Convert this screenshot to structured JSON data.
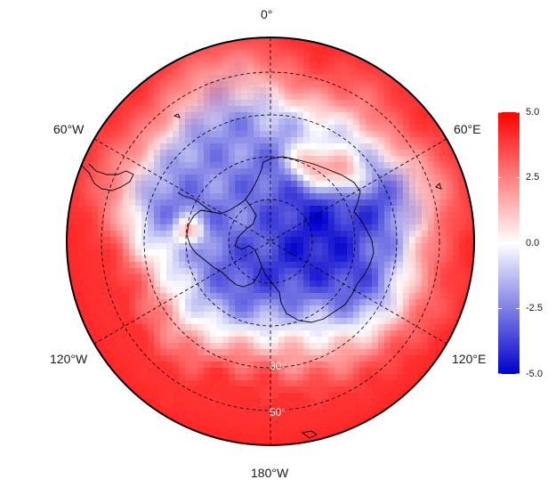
{
  "map": {
    "projection": "south-polar-stereographic",
    "longitude_labels": {
      "top": "0°",
      "left_upper": "60°W",
      "right_upper": "60°E",
      "left_lower": "120°W",
      "right_lower": "120°E",
      "bottom": "180°W"
    },
    "latitude_labels": [
      "30°",
      "50°"
    ],
    "graticule_style": "dashed",
    "coastlines": "Antarctica, Antarctic Peninsula, South America tip"
  },
  "colorbar": {
    "ticks": [
      "5.0",
      "2.5",
      "0.0",
      "-2.5",
      "-5.0"
    ],
    "range": [
      -5.0,
      5.0
    ],
    "colors": {
      "high": "#ff0000",
      "mid": "#ffffff",
      "low": "#0000cc"
    }
  },
  "colors": {
    "positive": "#ff2020",
    "negative": "#3333dd",
    "zero": "#ffffff",
    "border": "#000000"
  }
}
